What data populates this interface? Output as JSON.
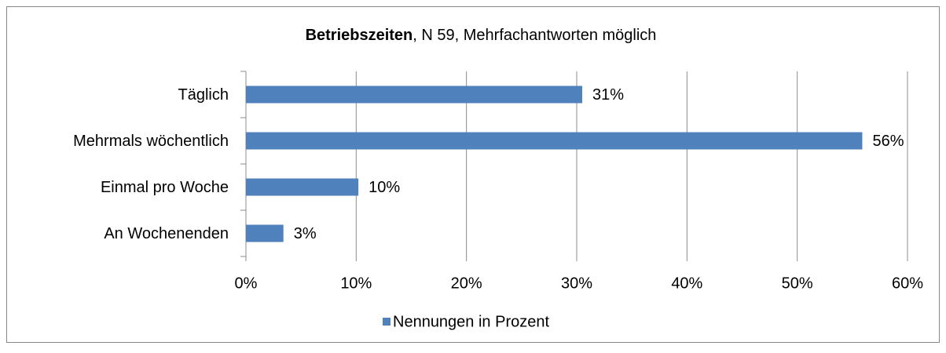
{
  "chart_data": {
    "type": "bar",
    "orientation": "horizontal",
    "title_parts": [
      "Betriebszeiten",
      ", N 59, Mehrfachantworten möglich"
    ],
    "categories": [
      "Täglich",
      "Mehrmals wöchentlich",
      "Einmal pro Woche",
      "An Wochenenden"
    ],
    "series": [
      {
        "name": "Nennungen in Prozent",
        "color": "#4f81bd",
        "values": [
          30.5,
          55.9,
          10.2,
          3.4
        ],
        "value_labels": [
          "31%",
          "56%",
          "10%",
          "3%"
        ]
      }
    ],
    "xlim": [
      0,
      60
    ],
    "xticks": [
      {
        "value": 0,
        "label": "0%"
      },
      {
        "value": 10,
        "label": "10%"
      },
      {
        "value": 20,
        "label": "20%"
      },
      {
        "value": 30,
        "label": "30%"
      },
      {
        "value": 40,
        "label": "40%"
      },
      {
        "value": 50,
        "label": "50%"
      },
      {
        "value": 60,
        "label": "60%"
      }
    ],
    "grid": true,
    "legend": "bottom"
  }
}
